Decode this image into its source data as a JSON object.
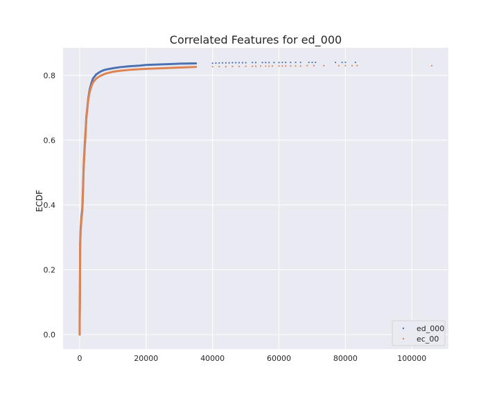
{
  "chart_data": {
    "type": "scatter",
    "title": "Correlated Features for ed_000",
    "xlabel": "",
    "ylabel": "ECDF",
    "xlim": [
      -5000,
      111000
    ],
    "ylim": [
      -0.045,
      0.885
    ],
    "xticks": [
      0,
      20000,
      40000,
      60000,
      80000,
      100000
    ],
    "yticks": [
      0.0,
      0.2,
      0.4,
      0.6,
      0.8
    ],
    "grid": true,
    "legend_position": "lower-right",
    "series": [
      {
        "name": "ed_000",
        "color": "#4C72B0",
        "points": [
          [
            0,
            0.0
          ],
          [
            0,
            0.05
          ],
          [
            50,
            0.09
          ],
          [
            150,
            0.28
          ],
          [
            300,
            0.33
          ],
          [
            500,
            0.36
          ],
          [
            800,
            0.39
          ],
          [
            1000,
            0.45
          ],
          [
            1200,
            0.52
          ],
          [
            1500,
            0.58
          ],
          [
            1800,
            0.63
          ],
          [
            2000,
            0.67
          ],
          [
            2300,
            0.7
          ],
          [
            2600,
            0.73
          ],
          [
            3000,
            0.755
          ],
          [
            3500,
            0.775
          ],
          [
            4000,
            0.79
          ],
          [
            5000,
            0.803
          ],
          [
            6000,
            0.81
          ],
          [
            7000,
            0.815
          ],
          [
            8000,
            0.818
          ],
          [
            10000,
            0.822
          ],
          [
            12000,
            0.825
          ],
          [
            15000,
            0.828
          ],
          [
            18000,
            0.83
          ],
          [
            20000,
            0.832
          ],
          [
            25000,
            0.834
          ],
          [
            30000,
            0.836
          ],
          [
            35000,
            0.837
          ],
          [
            40000,
            0.8375
          ],
          [
            41000,
            0.838
          ],
          [
            42000,
            0.838
          ],
          [
            43000,
            0.8385
          ],
          [
            44000,
            0.8385
          ],
          [
            45000,
            0.8385
          ],
          [
            46000,
            0.839
          ],
          [
            47000,
            0.839
          ],
          [
            48000,
            0.839
          ],
          [
            49000,
            0.839
          ],
          [
            50000,
            0.839
          ],
          [
            52000,
            0.8395
          ],
          [
            53000,
            0.8395
          ],
          [
            55000,
            0.8395
          ],
          [
            56000,
            0.8395
          ],
          [
            57000,
            0.8395
          ],
          [
            58500,
            0.8395
          ],
          [
            60000,
            0.8395
          ],
          [
            61000,
            0.84
          ],
          [
            62000,
            0.84
          ],
          [
            63500,
            0.84
          ],
          [
            65000,
            0.84
          ],
          [
            66500,
            0.84
          ],
          [
            69000,
            0.84
          ],
          [
            70000,
            0.84
          ],
          [
            71000,
            0.84
          ],
          [
            77000,
            0.84
          ],
          [
            79000,
            0.84
          ],
          [
            80000,
            0.84
          ],
          [
            83000,
            0.84
          ]
        ]
      },
      {
        "name": "ec_00",
        "color": "#DD8452",
        "points": [
          [
            0,
            0.0
          ],
          [
            0,
            0.04
          ],
          [
            50,
            0.08
          ],
          [
            150,
            0.27
          ],
          [
            300,
            0.32
          ],
          [
            500,
            0.35
          ],
          [
            800,
            0.38
          ],
          [
            1000,
            0.44
          ],
          [
            1200,
            0.51
          ],
          [
            1500,
            0.57
          ],
          [
            1800,
            0.62
          ],
          [
            2000,
            0.665
          ],
          [
            2300,
            0.695
          ],
          [
            2600,
            0.725
          ],
          [
            3000,
            0.748
          ],
          [
            3500,
            0.765
          ],
          [
            4000,
            0.778
          ],
          [
            5000,
            0.79
          ],
          [
            6000,
            0.797
          ],
          [
            7000,
            0.802
          ],
          [
            8000,
            0.806
          ],
          [
            10000,
            0.811
          ],
          [
            12000,
            0.814
          ],
          [
            15000,
            0.817
          ],
          [
            18000,
            0.819
          ],
          [
            20000,
            0.82
          ],
          [
            25000,
            0.822
          ],
          [
            30000,
            0.824
          ],
          [
            35000,
            0.826
          ],
          [
            40000,
            0.8265
          ],
          [
            42000,
            0.827
          ],
          [
            44000,
            0.827
          ],
          [
            46000,
            0.8275
          ],
          [
            48000,
            0.8275
          ],
          [
            50000,
            0.828
          ],
          [
            52000,
            0.828
          ],
          [
            53000,
            0.828
          ],
          [
            54500,
            0.8285
          ],
          [
            56000,
            0.8285
          ],
          [
            57000,
            0.8285
          ],
          [
            58000,
            0.829
          ],
          [
            60000,
            0.829
          ],
          [
            61000,
            0.829
          ],
          [
            62000,
            0.829
          ],
          [
            63500,
            0.829
          ],
          [
            65000,
            0.829
          ],
          [
            66500,
            0.829
          ],
          [
            68500,
            0.83
          ],
          [
            70500,
            0.83
          ],
          [
            73500,
            0.83
          ],
          [
            78000,
            0.83
          ],
          [
            80000,
            0.83
          ],
          [
            82000,
            0.83
          ],
          [
            83500,
            0.83
          ],
          [
            106000,
            0.83
          ]
        ]
      }
    ]
  }
}
